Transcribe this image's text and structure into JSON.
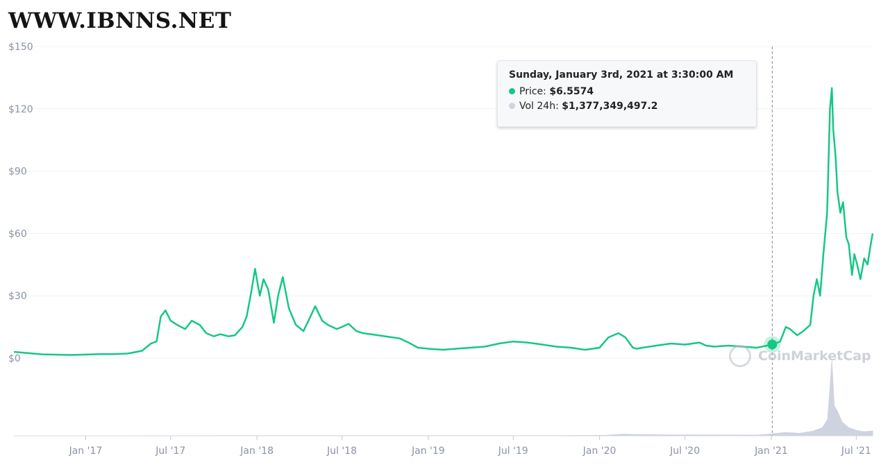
{
  "watermark": "WWW.IBNNS.NET",
  "brand": {
    "name": "CoinMarketCap",
    "icon": "coinmarketcap-logo-icon"
  },
  "tooltip": {
    "title": "Sunday, January 3rd, 2021 at 3:30:00 AM",
    "price_label": "Price:",
    "price_value": "$6.5574",
    "volume_label": "Vol 24h:",
    "volume_value": "$1,377,349,497.2"
  },
  "colors": {
    "price": "#16c784",
    "volume": "#cfd3df",
    "grid": "#eff2f5",
    "axis_text": "#8a93a3",
    "crosshair": "#808a9d"
  },
  "chart_data": {
    "type": "line",
    "title": "",
    "xlabel": "",
    "ylabel": "",
    "ylim": [
      0,
      150
    ],
    "y_ticks": [
      "$0",
      "$30",
      "$60",
      "$90",
      "$120",
      "$150"
    ],
    "y_tick_values": [
      0,
      30,
      60,
      90,
      120,
      150
    ],
    "x_tick_labels": [
      "Jan '17",
      "Jul '17",
      "Jan '18",
      "Jul '18",
      "Jan '19",
      "Jul '19",
      "Jan '20",
      "Jul '20",
      "Jan '21",
      "Jul '21"
    ],
    "x_tick_dates": [
      "2017-01-01",
      "2017-07-01",
      "2018-01-01",
      "2018-07-01",
      "2019-01-01",
      "2019-07-01",
      "2020-01-01",
      "2020-07-01",
      "2021-01-01",
      "2021-07-01"
    ],
    "grid": true,
    "legend": "none",
    "highlight": {
      "date": "2021-01-03",
      "price": 6.5574,
      "volume": 1377349497.2
    },
    "series": [
      {
        "name": "Price",
        "x": [
          "2016-08-01",
          "2016-10-01",
          "2016-12-01",
          "2017-01-01",
          "2017-02-01",
          "2017-03-01",
          "2017-04-01",
          "2017-05-01",
          "2017-05-20",
          "2017-06-01",
          "2017-06-10",
          "2017-06-20",
          "2017-07-01",
          "2017-07-15",
          "2017-08-01",
          "2017-08-15",
          "2017-09-01",
          "2017-09-15",
          "2017-10-01",
          "2017-10-15",
          "2017-11-01",
          "2017-11-15",
          "2017-12-01",
          "2017-12-10",
          "2017-12-20",
          "2017-12-28",
          "2018-01-07",
          "2018-01-15",
          "2018-01-25",
          "2018-02-06",
          "2018-02-15",
          "2018-02-25",
          "2018-03-10",
          "2018-03-25",
          "2018-04-10",
          "2018-04-25",
          "2018-05-05",
          "2018-05-20",
          "2018-06-01",
          "2018-06-20",
          "2018-07-01",
          "2018-07-15",
          "2018-08-01",
          "2018-08-15",
          "2018-09-01",
          "2018-10-01",
          "2018-11-01",
          "2018-11-20",
          "2018-12-10",
          "2019-01-01",
          "2019-02-01",
          "2019-03-01",
          "2019-04-01",
          "2019-05-01",
          "2019-06-01",
          "2019-07-01",
          "2019-08-01",
          "2019-09-01",
          "2019-10-01",
          "2019-11-01",
          "2019-12-01",
          "2020-01-01",
          "2020-01-20",
          "2020-02-10",
          "2020-02-25",
          "2020-03-12",
          "2020-03-20",
          "2020-04-01",
          "2020-05-01",
          "2020-06-01",
          "2020-07-01",
          "2020-08-01",
          "2020-08-15",
          "2020-09-01",
          "2020-10-01",
          "2020-11-01",
          "2020-12-01",
          "2021-01-03",
          "2021-01-20",
          "2021-02-01",
          "2021-02-10",
          "2021-02-25",
          "2021-03-10",
          "2021-03-25",
          "2021-04-01",
          "2021-04-08",
          "2021-04-15",
          "2021-04-22",
          "2021-04-30",
          "2021-05-06",
          "2021-05-10",
          "2021-05-13",
          "2021-05-18",
          "2021-05-22",
          "2021-05-28",
          "2021-06-03",
          "2021-06-10",
          "2021-06-15",
          "2021-06-22",
          "2021-06-27",
          "2021-07-03",
          "2021-07-10",
          "2021-07-18",
          "2021-07-25",
          "2021-08-01",
          "2021-08-05"
        ],
        "values": [
          3.0,
          1.8,
          1.5,
          1.7,
          1.9,
          1.9,
          2.2,
          3.5,
          7.0,
          8.0,
          20.0,
          23.0,
          18.0,
          16.0,
          14.0,
          18.0,
          16.0,
          12.0,
          10.5,
          11.5,
          10.5,
          11.0,
          15.0,
          20.0,
          32.0,
          43.0,
          30.0,
          38.0,
          33.0,
          17.0,
          30.0,
          39.0,
          24.0,
          16.0,
          13.0,
          20.0,
          25.0,
          18.0,
          16.0,
          14.0,
          15.0,
          16.5,
          13.0,
          12.0,
          11.5,
          10.5,
          9.5,
          7.5,
          5.0,
          4.5,
          4.0,
          4.5,
          5.0,
          5.5,
          7.0,
          8.0,
          7.5,
          6.5,
          5.5,
          5.0,
          4.0,
          5.0,
          10.0,
          12.0,
          10.0,
          5.0,
          4.5,
          5.0,
          6.0,
          7.0,
          6.5,
          7.5,
          6.0,
          5.5,
          6.0,
          5.5,
          5.0,
          6.5,
          8.0,
          15.0,
          14.0,
          11.0,
          13.0,
          16.0,
          30.0,
          38.0,
          30.0,
          50.0,
          70.0,
          120.0,
          130.0,
          110.0,
          97.0,
          80.0,
          70.0,
          75.0,
          58.0,
          55.0,
          40.0,
          50.0,
          45.0,
          38.0,
          48.0,
          45.0,
          55.0,
          60.0
        ]
      },
      {
        "name": "Vol 24h",
        "x": [
          "2016-08-01",
          "2017-06-01",
          "2018-01-01",
          "2019-01-01",
          "2019-10-01",
          "2020-01-15",
          "2020-02-20",
          "2020-03-15",
          "2020-06-01",
          "2020-09-01",
          "2020-12-01",
          "2021-01-03",
          "2021-02-01",
          "2021-03-01",
          "2021-04-01",
          "2021-04-20",
          "2021-05-01",
          "2021-05-06",
          "2021-05-10",
          "2021-05-15",
          "2021-05-22",
          "2021-06-01",
          "2021-06-15",
          "2021-07-01",
          "2021-07-15",
          "2021-08-05"
        ],
        "values": [
          0.02,
          0.05,
          0.1,
          0.08,
          0.1,
          0.4,
          1.2,
          1.0,
          0.7,
          0.6,
          0.5,
          1.38,
          2.5,
          1.8,
          3.5,
          6.0,
          12.0,
          35.0,
          55.0,
          22.0,
          18.0,
          10.0,
          6.0,
          4.0,
          3.0,
          3.5
        ]
      }
    ]
  }
}
